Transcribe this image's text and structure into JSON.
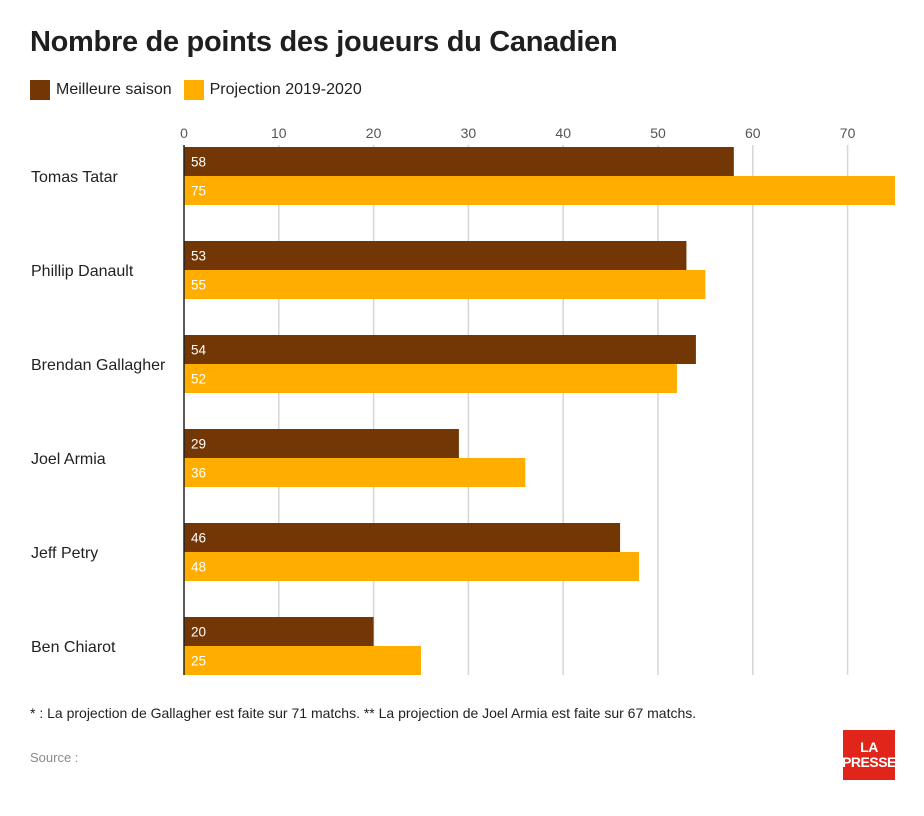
{
  "chart_data": {
    "type": "bar",
    "orientation": "horizontal",
    "title": "Nombre de points des joueurs du Canadien",
    "categories": [
      "Tomas Tatar",
      "Phillip Danault",
      "Brendan Gallagher",
      "Joel Armia",
      "Jeff Petry",
      "Ben Chiarot"
    ],
    "series": [
      {
        "name": "Meilleure saison",
        "color": "#733706",
        "values": [
          58,
          53,
          54,
          29,
          46,
          20
        ]
      },
      {
        "name": "Projection 2019-2020",
        "color": "#ffae00",
        "values": [
          75,
          55,
          52,
          36,
          48,
          25
        ]
      }
    ],
    "xlim": [
      0,
      75
    ],
    "xticks": [
      0,
      10,
      20,
      30,
      40,
      50,
      60,
      70
    ],
    "grid": "vertical",
    "legend": "top-left",
    "xlabel": "",
    "ylabel": ""
  },
  "footnote": "* : La projection de Gallagher est faite sur 71 matchs. ** La projection de Joel Armia est faite sur 67 matchs.",
  "source": "Source :",
  "logo": {
    "line1": "LA",
    "line2": "PRESSE",
    "color": "#e1251b"
  }
}
